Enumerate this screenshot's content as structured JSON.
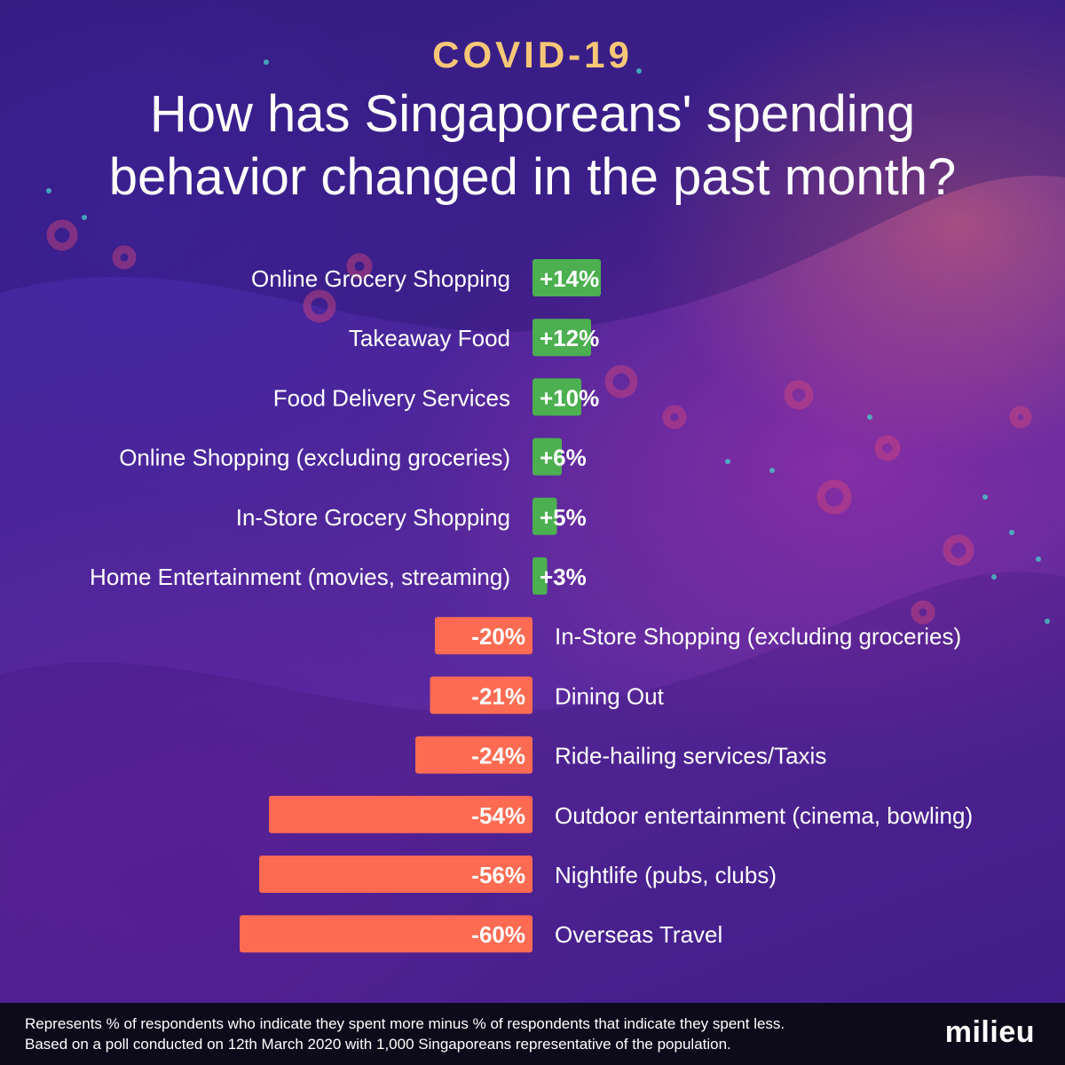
{
  "chart_data": {
    "type": "bar",
    "orientation": "horizontal",
    "kicker": "COVID-19",
    "title_lines": [
      "How has Singaporeans' spending",
      "behavior changed in the past month?"
    ],
    "categories": [
      "Online Grocery Shopping",
      "Takeaway Food",
      "Food Delivery Services",
      "Online Shopping (excluding groceries)",
      "In-Store Grocery Shopping",
      "Home Entertainment (movies, streaming)",
      "In-Store Shopping (excluding groceries)",
      "Dining Out",
      "Ride-hailing services/Taxis",
      "Outdoor entertainment (cinema, bowling)",
      "Nightlife (pubs, clubs)",
      "Overseas Travel"
    ],
    "values": [
      14,
      12,
      10,
      6,
      5,
      3,
      -20,
      -21,
      -24,
      -54,
      -56,
      -60
    ],
    "labels": [
      "+14%",
      "+12%",
      "+10%",
      "+6%",
      "+5%",
      "+3%",
      "-20%",
      "-21%",
      "-24%",
      "-54%",
      "-56%",
      "-60%"
    ],
    "unit": "%",
    "xlabel": "",
    "ylabel": "",
    "grid": false,
    "legend": "none"
  },
  "colors": {
    "positive": "#4caf50",
    "negative": "#ff6b52",
    "kicker": "#f7c777",
    "text": "#ffffff",
    "footer_bg": "#0d0a1a"
  },
  "footer": {
    "note_line1": "Represents % of respondents who indicate they spent more minus % of respondents that indicate they spent less.",
    "note_line2": "Based on a poll conducted on 12th March 2020 with 1,000 Singaporeans representative of the population.",
    "logo": "milieu"
  }
}
